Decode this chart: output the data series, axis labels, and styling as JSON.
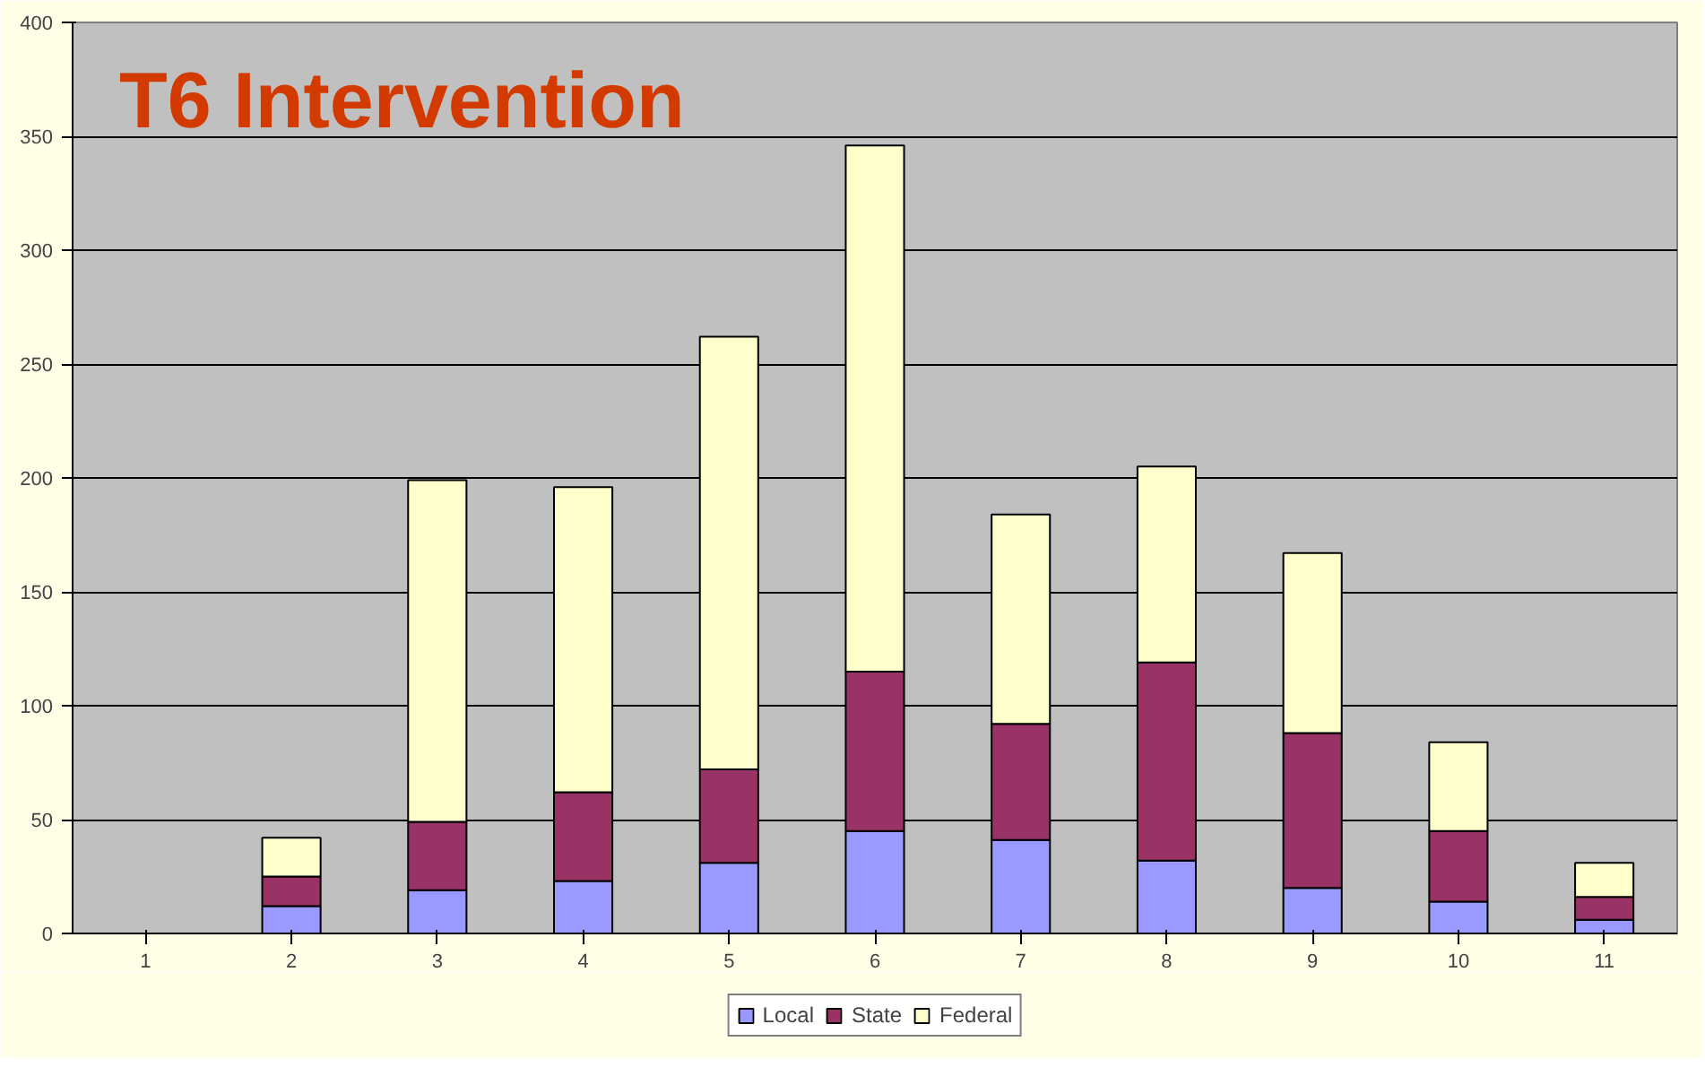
{
  "chart_data": {
    "type": "bar",
    "title": "T6 Intervention",
    "stacked": true,
    "categories": [
      "1",
      "2",
      "3",
      "4",
      "5",
      "6",
      "7",
      "8",
      "9",
      "10",
      "11"
    ],
    "series": [
      {
        "name": "Local",
        "color": "#9999ff",
        "values": [
          0,
          12,
          19,
          23,
          31,
          45,
          41,
          32,
          20,
          14,
          6
        ]
      },
      {
        "name": "State",
        "color": "#993366",
        "values": [
          0,
          13,
          30,
          39,
          41,
          70,
          51,
          87,
          68,
          31,
          10
        ]
      },
      {
        "name": "Federal",
        "color": "#ffffcc",
        "values": [
          0,
          17,
          150,
          134,
          190,
          231,
          92,
          86,
          79,
          39,
          15
        ]
      }
    ],
    "ylim": [
      0,
      400
    ],
    "yticks": [
      0,
      50,
      100,
      150,
      200,
      250,
      300,
      350,
      400
    ],
    "grid": "y",
    "legend": "bottom"
  }
}
